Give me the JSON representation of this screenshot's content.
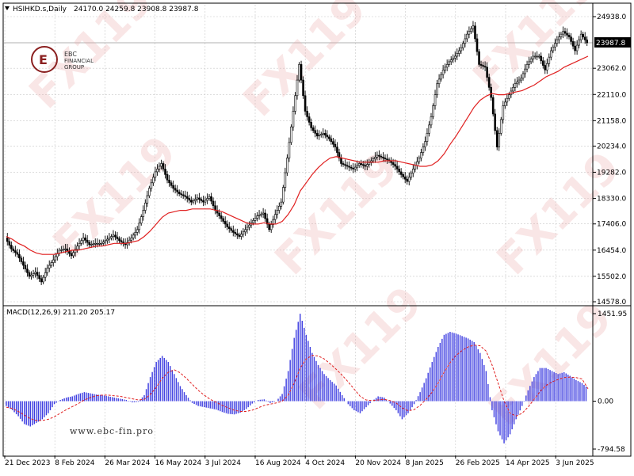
{
  "header": {
    "symbol": "HSIHKD.s,Daily",
    "ohlc": "24170.0 24259.8 23908.8 23987.8"
  },
  "logo": {
    "line1": "EBC",
    "line2": "FINANCIAL",
    "line3": "GROUP"
  },
  "watermark": "FX119",
  "website": "www.ebc-fin.pro",
  "colors": {
    "candle": "#000000",
    "ma_line": "#e02020",
    "macd_hist": "#3a3ae0",
    "macd_signal": "#e02020",
    "grid": "#c8c8c8"
  },
  "chart_data": [
    {
      "type": "candlestick",
      "x_tick_labels": [
        "21 Dec 2023",
        "8 Feb 2024",
        "26 Mar 2024",
        "16 May 2024",
        "3 Jul 2024",
        "16 Aug 2024",
        "4 Oct 2024",
        "20 Nov 2024",
        "8 Jan 2025",
        "26 Feb 2025",
        "14 Apr 2025",
        "3 Jun 2025"
      ],
      "y_tick_labels": [
        "24938.0",
        "23062.0",
        "22110.0",
        "21158.0",
        "20234.0",
        "19282.0",
        "18330.0",
        "17406.0",
        "16454.0",
        "15502.0",
        "14578.0"
      ],
      "ylim": [
        14578,
        24938
      ],
      "last_price": "23987.8",
      "grid": true,
      "series": [
        {
          "kind": "close",
          "values": [
            16900,
            16500,
            16300,
            15900,
            15500,
            15650,
            15300,
            15800,
            16100,
            16450,
            16500,
            16250,
            16600,
            16900,
            16650,
            16700,
            16700,
            16850,
            17000,
            16800,
            16650,
            16900,
            17200,
            17900,
            18700,
            19300,
            19600,
            19000,
            18700,
            18500,
            18400,
            18200,
            18350,
            18200,
            18400,
            17900,
            17600,
            17300,
            17100,
            16950,
            17200,
            17450,
            17700,
            17800,
            17200,
            17750,
            18200,
            19800,
            21500,
            23200,
            21500,
            20900,
            20600,
            20700,
            20500,
            20200,
            19600,
            19500,
            19400,
            19600,
            19500,
            19700,
            19900,
            19800,
            19700,
            19500,
            19200,
            18950,
            19400,
            19800,
            20400,
            21300,
            22500,
            23000,
            23300,
            23500,
            23800,
            24300,
            24600,
            23200,
            23100,
            22000,
            20200,
            21700,
            22100,
            22500,
            22700,
            23200,
            23500,
            23500,
            23000,
            23700,
            24100,
            24400,
            24200,
            23700,
            24300,
            23988
          ]
        },
        {
          "kind": "moving_average",
          "values": [
            16950,
            16850,
            16700,
            16600,
            16450,
            16350,
            16300,
            16300,
            16300,
            16350,
            16400,
            16450,
            16450,
            16500,
            16550,
            16600,
            16600,
            16650,
            16700,
            16700,
            16700,
            16750,
            16800,
            16950,
            17150,
            17400,
            17650,
            17800,
            17850,
            17900,
            17900,
            17950,
            17950,
            17950,
            17950,
            17900,
            17850,
            17750,
            17650,
            17550,
            17450,
            17400,
            17400,
            17450,
            17400,
            17400,
            17500,
            17750,
            18100,
            18600,
            18900,
            19200,
            19450,
            19650,
            19800,
            19850,
            19800,
            19750,
            19700,
            19650,
            19650,
            19650,
            19650,
            19700,
            19700,
            19700,
            19650,
            19600,
            19550,
            19500,
            19500,
            19550,
            19700,
            19950,
            20300,
            20600,
            20950,
            21300,
            21650,
            21900,
            22050,
            22150,
            22100,
            22100,
            22150,
            22200,
            22250,
            22350,
            22450,
            22600,
            22750,
            22850,
            22950,
            23100,
            23200,
            23300,
            23400,
            23500
          ]
        }
      ]
    },
    {
      "type": "bar",
      "title": "MACD(12,26,9) 211.20 205.17",
      "y_tick_labels": [
        "1451.95",
        "0.00",
        "-794.58"
      ],
      "ylim": [
        -794.58,
        1451.95
      ],
      "series": [
        {
          "name": "MACD",
          "values": [
            -80,
            -150,
            -250,
            -380,
            -420,
            -360,
            -300,
            -200,
            -50,
            20,
            60,
            80,
            120,
            150,
            130,
            110,
            100,
            80,
            60,
            40,
            20,
            -20,
            -10,
            100,
            400,
            650,
            750,
            650,
            450,
            250,
            100,
            -30,
            -80,
            -100,
            -120,
            -140,
            -180,
            -210,
            -220,
            -190,
            -130,
            -40,
            20,
            30,
            -30,
            0,
            120,
            500,
            1050,
            1450,
            1100,
            800,
            600,
            450,
            350,
            260,
            100,
            -50,
            -150,
            -200,
            -100,
            0,
            80,
            60,
            -40,
            -150,
            -300,
            -200,
            -50,
            150,
            380,
            650,
            900,
            1100,
            1150,
            1120,
            1080,
            1040,
            980,
            800,
            500,
            -150,
            -500,
            -700,
            -550,
            -300,
            -80,
            180,
            400,
            550,
            550,
            500,
            450,
            480,
            420,
            350,
            300,
            211
          ]
        },
        {
          "name": "Signal",
          "values": [
            -100,
            -120,
            -170,
            -230,
            -290,
            -320,
            -320,
            -300,
            -260,
            -200,
            -140,
            -90,
            -40,
            20,
            60,
            90,
            100,
            100,
            90,
            80,
            60,
            40,
            20,
            30,
            110,
            230,
            380,
            480,
            520,
            470,
            380,
            280,
            180,
            100,
            30,
            -20,
            -70,
            -110,
            -150,
            -170,
            -170,
            -150,
            -110,
            -70,
            -50,
            -30,
            0,
            100,
            300,
            550,
            700,
            760,
            750,
            700,
            620,
            530,
            430,
            320,
            200,
            80,
            20,
            10,
            20,
            30,
            10,
            -30,
            -110,
            -160,
            -140,
            -70,
            30,
            150,
            300,
            480,
            640,
            760,
            840,
            900,
            930,
            920,
            830,
            600,
            300,
            0,
            -200,
            -250,
            -200,
            -100,
            30,
            160,
            260,
            320,
            360,
            390,
            400,
            390,
            370,
            205
          ]
        }
      ]
    }
  ]
}
